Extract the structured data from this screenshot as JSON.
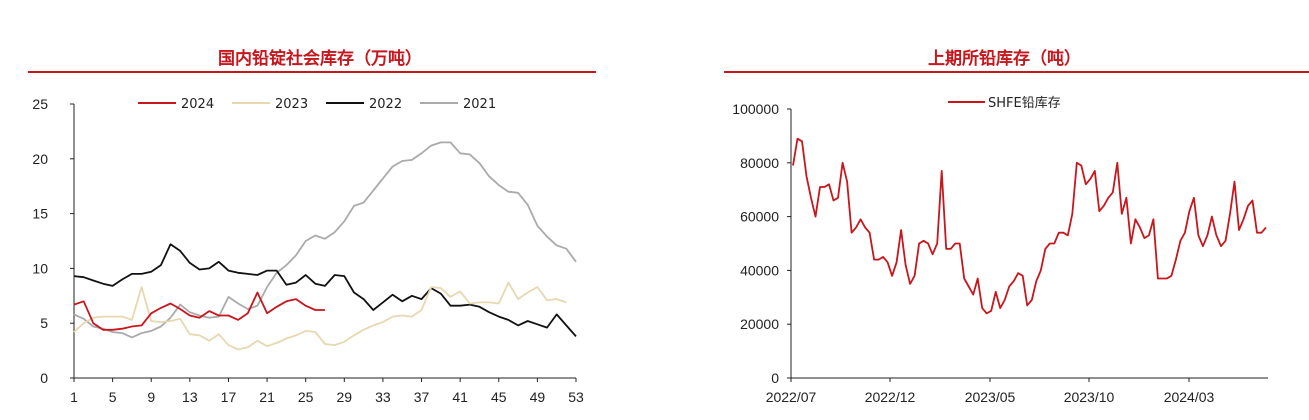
{
  "chart_data": [
    {
      "type": "line",
      "title": "国内铅锭社会库存（万吨）",
      "xlabel": "",
      "ylabel": "",
      "ylim": [
        0,
        25
      ],
      "yticks": [
        0,
        5,
        10,
        15,
        20,
        25
      ],
      "xlim": [
        1,
        53
      ],
      "xticks": [
        1,
        5,
        9,
        13,
        17,
        21,
        25,
        29,
        33,
        37,
        41,
        45,
        49,
        53
      ],
      "legend_position": "top",
      "grid": false,
      "series": [
        {
          "name": "2024",
          "color": "#c8161d",
          "x": [
            1,
            2,
            3,
            4,
            5,
            6,
            7,
            8,
            9,
            10,
            11,
            12,
            13,
            14,
            15,
            16,
            17,
            18,
            19,
            20,
            21,
            22,
            23,
            24,
            25,
            26,
            27
          ],
          "values": [
            6.7,
            7.0,
            5.0,
            4.4,
            4.4,
            4.5,
            4.7,
            4.8,
            5.9,
            6.4,
            6.8,
            6.3,
            5.7,
            5.5,
            6.1,
            5.7,
            5.7,
            5.3,
            5.9,
            7.8,
            5.9,
            6.5,
            7.0,
            7.2,
            6.6,
            6.2,
            6.2
          ]
        },
        {
          "name": "2023",
          "color": "#e8d8b0",
          "x": [
            1,
            2,
            3,
            4,
            5,
            6,
            7,
            8,
            9,
            10,
            11,
            12,
            13,
            14,
            15,
            16,
            17,
            18,
            19,
            20,
            21,
            22,
            23,
            24,
            25,
            26,
            27,
            28,
            29,
            30,
            31,
            32,
            33,
            34,
            35,
            36,
            37,
            38,
            39,
            40,
            41,
            42,
            43,
            44,
            45,
            46,
            47,
            48,
            49,
            50,
            51,
            52
          ],
          "values": [
            4.2,
            5.0,
            5.5,
            5.6,
            5.6,
            5.6,
            5.3,
            8.3,
            5.2,
            5.1,
            5.2,
            5.4,
            4.0,
            3.9,
            3.4,
            4.0,
            3.0,
            2.6,
            2.8,
            3.4,
            2.9,
            3.2,
            3.6,
            3.9,
            4.3,
            4.2,
            3.1,
            3.0,
            3.3,
            3.9,
            4.4,
            4.8,
            5.1,
            5.6,
            5.7,
            5.6,
            6.2,
            8.3,
            8.2,
            7.4,
            7.9,
            6.8,
            6.9,
            6.9,
            6.8,
            8.7,
            7.2,
            7.8,
            8.3,
            7.1,
            7.2,
            6.9
          ]
        },
        {
          "name": "2022",
          "color": "#111111",
          "x": [
            1,
            2,
            3,
            4,
            5,
            6,
            7,
            8,
            9,
            10,
            11,
            12,
            13,
            14,
            15,
            16,
            17,
            18,
            19,
            20,
            21,
            22,
            23,
            24,
            25,
            26,
            27,
            28,
            29,
            30,
            31,
            32,
            33,
            34,
            35,
            36,
            37,
            38,
            39,
            40,
            41,
            42,
            43,
            44,
            45,
            46,
            47,
            48,
            49,
            50,
            51,
            52,
            53
          ],
          "values": [
            9.3,
            9.2,
            8.9,
            8.6,
            8.4,
            9.0,
            9.5,
            9.5,
            9.7,
            10.3,
            12.2,
            11.6,
            10.5,
            9.9,
            10.0,
            10.6,
            9.8,
            9.6,
            9.5,
            9.4,
            9.8,
            9.8,
            8.5,
            8.7,
            9.4,
            8.6,
            8.4,
            9.4,
            9.3,
            7.8,
            7.2,
            6.2,
            6.9,
            7.6,
            7.0,
            7.5,
            7.2,
            8.2,
            7.7,
            6.6,
            6.6,
            6.7,
            6.5,
            6.0,
            5.6,
            5.3,
            4.8,
            5.2,
            4.9,
            4.6,
            5.8,
            4.8,
            3.8
          ]
        },
        {
          "name": "2021",
          "color": "#aaaaaa",
          "x": [
            1,
            2,
            3,
            4,
            5,
            6,
            7,
            8,
            9,
            10,
            11,
            12,
            13,
            14,
            15,
            16,
            17,
            18,
            19,
            20,
            21,
            22,
            23,
            24,
            25,
            26,
            27,
            28,
            29,
            30,
            31,
            32,
            33,
            34,
            35,
            36,
            37,
            38,
            39,
            40,
            41,
            42,
            43,
            44,
            45,
            46,
            47,
            48,
            49,
            50,
            51,
            52,
            53
          ],
          "values": [
            5.8,
            5.4,
            4.7,
            4.5,
            4.2,
            4.1,
            3.7,
            4.1,
            4.3,
            4.7,
            5.5,
            6.7,
            6.0,
            5.7,
            5.5,
            5.6,
            7.4,
            6.8,
            6.3,
            6.6,
            8.3,
            9.6,
            10.3,
            11.2,
            12.5,
            13.0,
            12.7,
            13.3,
            14.3,
            15.7,
            16.0,
            17.1,
            18.2,
            19.3,
            19.8,
            19.9,
            20.5,
            21.2,
            21.5,
            21.5,
            20.5,
            20.4,
            19.6,
            18.4,
            17.6,
            17.0,
            16.9,
            15.8,
            13.9,
            12.9,
            12.1,
            11.8,
            10.6
          ]
        }
      ]
    },
    {
      "type": "line",
      "title": "上期所铅库存（吨）",
      "xlabel": "",
      "ylabel": "",
      "ylim": [
        0,
        100000
      ],
      "yticks": [
        0,
        20000,
        40000,
        60000,
        80000,
        100000
      ],
      "xticks": [
        "2022/07",
        "2022/12",
        "2023/05",
        "2023/10",
        "2024/03"
      ],
      "legend_position": "top-left",
      "grid": false,
      "series": [
        {
          "name": "SHFE铅库存",
          "color": "#c8161d",
          "x_start": "2022/07",
          "x_step": "week",
          "values": [
            79000,
            89000,
            88000,
            75000,
            67000,
            60000,
            71000,
            71000,
            72000,
            66000,
            67000,
            80000,
            73000,
            54000,
            56000,
            59000,
            56000,
            54000,
            44000,
            44000,
            45000,
            43000,
            38000,
            43000,
            55000,
            42000,
            35000,
            38000,
            50000,
            51000,
            50000,
            46000,
            50000,
            77000,
            48000,
            48000,
            50000,
            50000,
            37000,
            34000,
            31000,
            37000,
            26000,
            24000,
            25000,
            32000,
            26000,
            29000,
            34000,
            36000,
            39000,
            38000,
            27000,
            29000,
            36000,
            40000,
            48000,
            50000,
            50000,
            54000,
            54000,
            53000,
            61000,
            80000,
            79000,
            72000,
            74000,
            77000,
            62000,
            64000,
            67000,
            69000,
            80000,
            61000,
            67000,
            50000,
            59000,
            56000,
            52000,
            53000,
            59000,
            37000,
            37000,
            37000,
            38000,
            44000,
            51000,
            54000,
            62000,
            67000,
            53000,
            49000,
            53000,
            60000,
            53000,
            49000,
            51000,
            61000,
            73000,
            55000,
            59000,
            64000,
            66000,
            54000,
            54000,
            56000
          ]
        }
      ]
    }
  ]
}
